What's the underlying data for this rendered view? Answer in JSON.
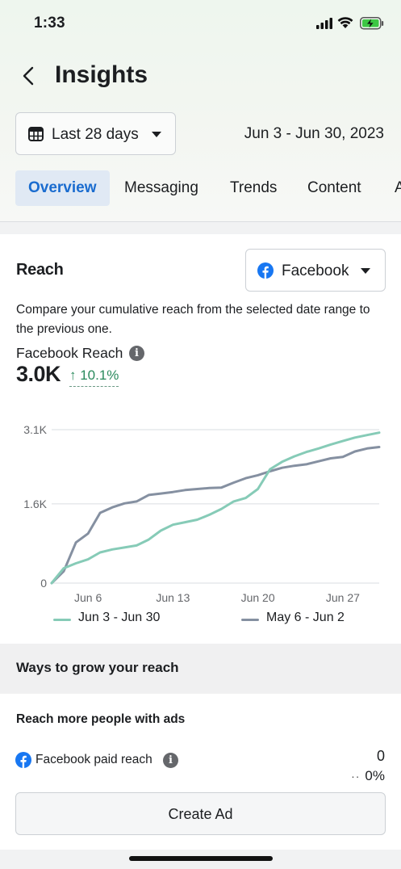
{
  "status_bar": {
    "time": "1:33"
  },
  "header": {
    "title": "Insights"
  },
  "filters": {
    "range_label": "Last 28 days",
    "date_range": "Jun 3 - Jun 30, 2023"
  },
  "tabs": [
    {
      "label": "Overview",
      "active": true
    },
    {
      "label": "Messaging"
    },
    {
      "label": "Trends"
    },
    {
      "label": "Content"
    },
    {
      "label": "A"
    }
  ],
  "reach": {
    "title": "Reach",
    "platform": "Facebook",
    "description": "Compare your cumulative reach from the selected date range to the previous one.",
    "metric_label": "Facebook Reach",
    "metric_value": "3.0K",
    "delta": "↑ 10.1%"
  },
  "chart_data": {
    "type": "line",
    "yticks": [
      "3.1K",
      "1.6K",
      "0"
    ],
    "ytick_values": [
      3100,
      1600,
      0
    ],
    "ylim": [
      0,
      3100
    ],
    "xticks": [
      "Jun 6",
      "Jun 13",
      "Jun 20",
      "Jun 27"
    ],
    "xtick_days": [
      4,
      11,
      18,
      25
    ],
    "xlim": [
      1,
      28
    ],
    "series": [
      {
        "name": "Jun 3 - Jun 30",
        "color": "#86cbb7",
        "values": [
          0,
          300,
          400,
          480,
          620,
          680,
          720,
          760,
          880,
          1060,
          1180,
          1230,
          1280,
          1380,
          1500,
          1650,
          1720,
          1900,
          2300,
          2450,
          2560,
          2650,
          2720,
          2800,
          2870,
          2940,
          2990,
          3040
        ]
      },
      {
        "name": "May 6 - Jun 2",
        "color": "#8590a1",
        "values": [
          0,
          240,
          820,
          1000,
          1420,
          1530,
          1610,
          1650,
          1780,
          1810,
          1840,
          1880,
          1900,
          1920,
          1930,
          2030,
          2120,
          2180,
          2260,
          2330,
          2370,
          2400,
          2460,
          2520,
          2550,
          2660,
          2720,
          2750
        ]
      }
    ]
  },
  "grow": {
    "heading": "Ways to grow your reach",
    "subheading": "Reach more people with ads",
    "paid_label": "Facebook paid reach",
    "paid_value": "0",
    "paid_dots": "··",
    "paid_pct": "0%",
    "cta": "Create Ad"
  }
}
